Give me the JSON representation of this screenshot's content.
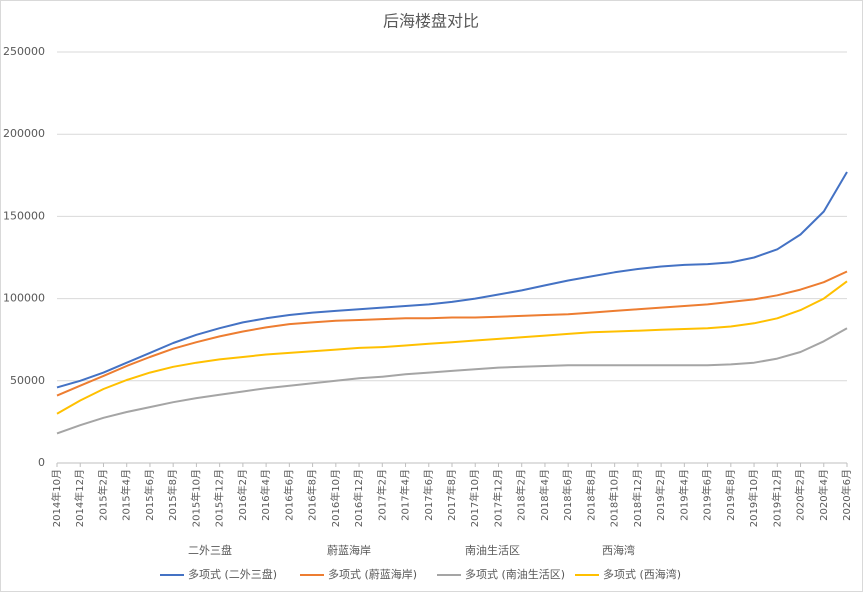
{
  "chart_data": {
    "type": "line",
    "title": "后海楼盘对比",
    "categories": [
      "2014年10月",
      "2014年12月",
      "2015年2月",
      "2015年4月",
      "2015年6月",
      "2015年8月",
      "2015年10月",
      "2015年12月",
      "2016年2月",
      "2016年4月",
      "2016年6月",
      "2016年8月",
      "2016年10月",
      "2016年12月",
      "2017年2月",
      "2017年4月",
      "2017年6月",
      "2017年8月",
      "2017年10月",
      "2017年12月",
      "2018年2月",
      "2018年4月",
      "2018年6月",
      "2018年8月",
      "2018年10月",
      "2018年12月",
      "2019年2月",
      "2019年4月",
      "2019年6月",
      "2019年8月",
      "2019年10月",
      "2019年12月",
      "2020年2月",
      "2020年4月",
      "2020年6月"
    ],
    "source_series": [
      "二外三盘",
      "蔚蓝海岸",
      "南油生活区",
      "西海湾"
    ],
    "series": [
      {
        "name": "多项式 (二外三盘)",
        "color": "#4472c4",
        "values": [
          46000,
          50000,
          55000,
          61000,
          67000,
          73000,
          78000,
          82000,
          85500,
          88000,
          90000,
          91500,
          92500,
          93500,
          94500,
          95500,
          96500,
          98000,
          100000,
          102500,
          105000,
          108000,
          111000,
          113500,
          116000,
          118000,
          119500,
          120500,
          121000,
          122000,
          125000,
          130000,
          139000,
          153000,
          177000
        ]
      },
      {
        "name": "多项式 (蔚蓝海岸)",
        "color": "#ed7d31",
        "values": [
          41000,
          47000,
          53000,
          59000,
          64500,
          69500,
          73500,
          77000,
          80000,
          82500,
          84500,
          85500,
          86500,
          87000,
          87500,
          88000,
          88000,
          88500,
          88500,
          89000,
          89500,
          90000,
          90500,
          91500,
          92500,
          93500,
          94500,
          95500,
          96500,
          98000,
          99500,
          102000,
          105500,
          110000,
          116500
        ]
      },
      {
        "name": "多项式 (南油生活区)",
        "color": "#a5a5a5",
        "values": [
          18000,
          23000,
          27500,
          31000,
          34000,
          37000,
          39500,
          41500,
          43500,
          45500,
          47000,
          48500,
          50000,
          51500,
          52500,
          54000,
          55000,
          56000,
          57000,
          58000,
          58500,
          59000,
          59500,
          59500,
          59500,
          59500,
          59500,
          59500,
          59500,
          60000,
          61000,
          63500,
          67500,
          74000,
          82000
        ]
      },
      {
        "name": "多项式 (西海湾)",
        "color": "#ffc000",
        "values": [
          30000,
          38000,
          45000,
          50500,
          55000,
          58500,
          61000,
          63000,
          64500,
          66000,
          67000,
          68000,
          69000,
          70000,
          70500,
          71500,
          72500,
          73500,
          74500,
          75500,
          76500,
          77500,
          78500,
          79500,
          80000,
          80500,
          81000,
          81500,
          82000,
          83000,
          85000,
          88000,
          93000,
          100000,
          110500
        ]
      }
    ],
    "ylim": [
      0,
      250000
    ],
    "yticks": [
      0,
      50000,
      100000,
      150000,
      200000,
      250000
    ],
    "grid": true
  }
}
